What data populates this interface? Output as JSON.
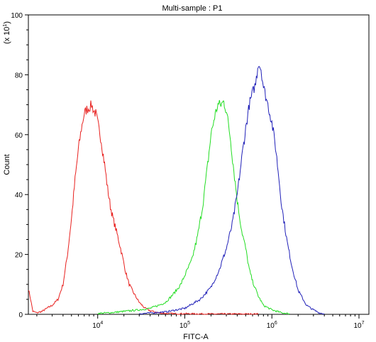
{
  "chart_data": {
    "type": "line",
    "title": "Multi-sample : P1",
    "xlabel": "FITC-A",
    "ylabel": "Count",
    "y_multiplier_label": "(x 10",
    "y_multiplier_exponent": "1",
    "y_multiplier_close": ")",
    "x_scale": "log",
    "xlim": [
      1600,
      13000000
    ],
    "ylim": [
      0,
      100
    ],
    "grid": false,
    "legend": "none",
    "x_ticks": [
      {
        "value": 10000,
        "base": "10",
        "exp": "4"
      },
      {
        "value": 100000,
        "base": "10",
        "exp": "5"
      },
      {
        "value": 1000000,
        "base": "10",
        "exp": "6"
      },
      {
        "value": 10000000,
        "base": "10",
        "exp": "7"
      }
    ],
    "y_ticks": [
      0,
      20,
      40,
      60,
      80,
      100
    ],
    "series": [
      {
        "color": "#e8201e",
        "x": [
          1600,
          1700,
          1800,
          2000,
          2300,
          2600,
          3000,
          3500,
          4000,
          4500,
          5000,
          5500,
          6000,
          6500,
          7000,
          7500,
          8000,
          8500,
          9000,
          9500,
          10000,
          11000,
          12000,
          13000,
          14000,
          15000,
          17000,
          19000,
          21000,
          23000,
          26000,
          30000,
          35000,
          40000,
          45000,
          50000,
          60000,
          80000,
          100000,
          200000,
          300000,
          500000,
          700000
        ],
        "y": [
          8.5,
          5,
          1,
          0.5,
          1,
          2,
          3,
          5,
          10,
          20,
          32,
          45,
          55,
          62,
          67,
          68.5,
          69,
          70,
          68,
          67,
          64,
          58,
          50,
          42,
          36,
          32,
          26,
          20,
          14,
          10,
          7,
          4,
          2,
          1.2,
          0.8,
          0.5,
          0.3,
          0.2,
          0.2,
          0.1,
          0.1,
          0.1,
          0.1
        ]
      },
      {
        "color": "#22dd22",
        "x": [
          10000,
          15000,
          20000,
          30000,
          40000,
          50000,
          60000,
          70000,
          80000,
          90000,
          100000,
          120000,
          140000,
          160000,
          180000,
          200000,
          220000,
          240000,
          260000,
          280000,
          300000,
          330000,
          360000,
          400000,
          450000,
          500000,
          550000,
          600000,
          700000,
          800000,
          1000000,
          1300000,
          1600000
        ],
        "y": [
          0.3,
          0.6,
          1,
          1.5,
          2,
          3,
          4,
          6,
          8,
          10,
          13,
          18,
          26,
          36,
          48,
          60,
          66,
          70,
          70,
          71,
          68,
          60,
          50,
          38,
          28,
          22,
          15,
          11,
          6,
          3,
          1.5,
          0.5,
          0.2
        ]
      },
      {
        "color": "#2020b8",
        "x": [
          30000,
          60000,
          100000,
          150000,
          200000,
          250000,
          300000,
          350000,
          400000,
          450000,
          500000,
          550000,
          600000,
          650000,
          700000,
          750000,
          800000,
          900000,
          1000000,
          1100000,
          1200000,
          1300000,
          1500000,
          1700000,
          2000000,
          2500000,
          3000000,
          3500000,
          4000000
        ],
        "y": [
          0.2,
          0.8,
          2,
          5,
          9,
          15,
          22,
          30,
          40,
          52,
          62,
          70,
          74,
          77,
          84,
          82,
          76,
          70,
          64,
          56,
          46,
          36,
          24,
          16,
          8,
          3,
          1.5,
          0.5,
          0.1
        ]
      }
    ]
  }
}
